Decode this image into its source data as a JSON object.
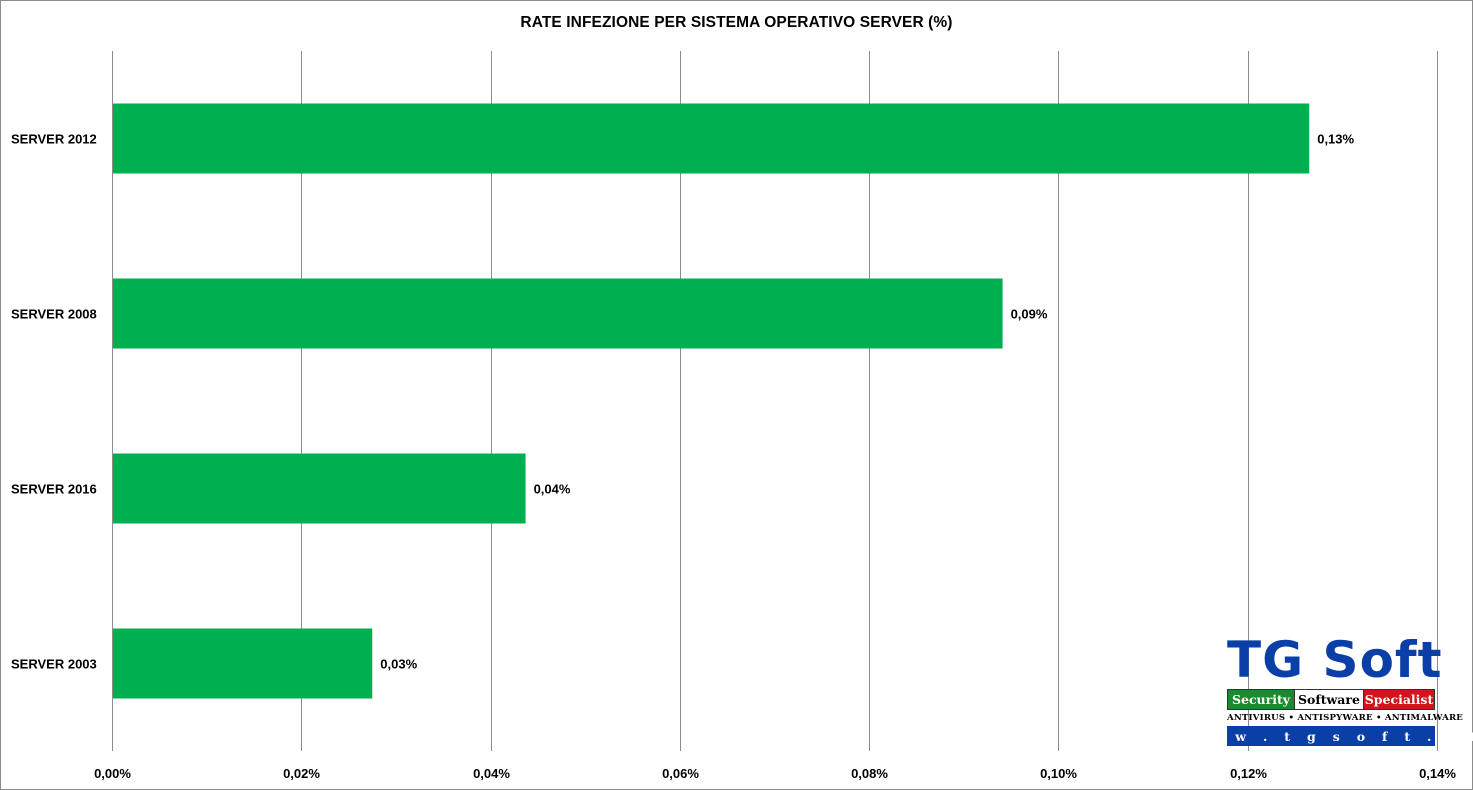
{
  "chart_data": {
    "type": "bar",
    "orientation": "horizontal",
    "title": "RATE INFEZIONE PER SISTEMA OPERATIVO SERVER (%)",
    "xlabel": "",
    "ylabel": "",
    "categories": [
      "SERVER 2012",
      "SERVER 2008",
      "SERVER 2016",
      "SERVER 2003"
    ],
    "values": [
      0.1265,
      0.0941,
      0.0437,
      0.0275
    ],
    "data_labels": [
      "0,13%",
      "0,09%",
      "0,04%",
      "0,03%"
    ],
    "xlim": [
      0,
      0.14
    ],
    "xticks": [
      0,
      0.02,
      0.04,
      0.06,
      0.08,
      0.1,
      0.12,
      0.14
    ],
    "xtick_labels": [
      "0,00%",
      "0,02%",
      "0,04%",
      "0,06%",
      "0,08%",
      "0,10%",
      "0,12%",
      "0,14%"
    ],
    "bar_color": "#00b050",
    "grid": "vertical",
    "legend": "none"
  },
  "logo": {
    "name": "TG Soft",
    "tagline": [
      "Security",
      "Software",
      "Specialist"
    ],
    "products": "ANTIVIRUS • ANTISPYWARE • ANTIMALWARE",
    "url": "w w w . t g s o f t . i t",
    "colors": {
      "blue": "#0a3fa8",
      "green": "#1a8a2e",
      "red": "#d3141c"
    }
  }
}
